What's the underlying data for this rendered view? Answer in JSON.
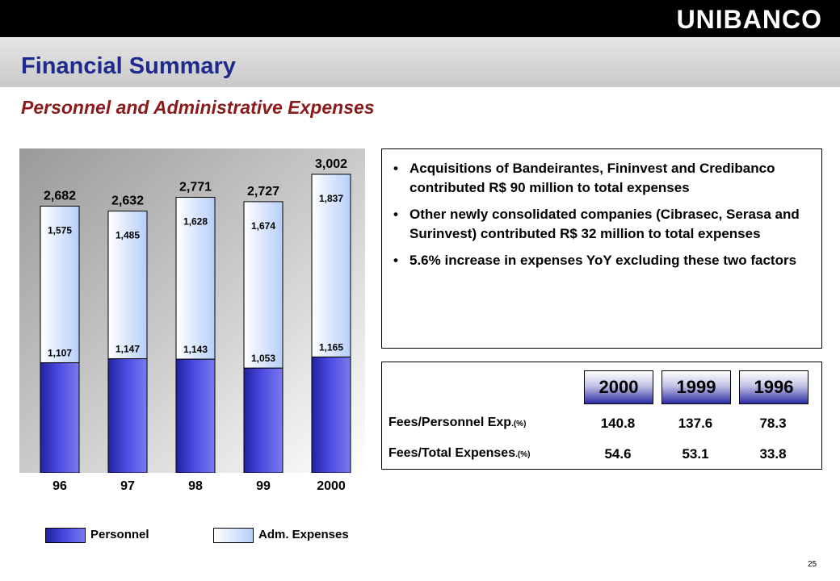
{
  "header": {
    "logo_text": "UNIBANCO"
  },
  "title": "Financial Summary",
  "subtitle": "Personnel and Administrative Expenses",
  "colors": {
    "personnel": "#3a3ac8",
    "adm_expenses": "#dce8ff",
    "title": "#1f2a8f",
    "subtitle": "#8b1a1a"
  },
  "chart_data": {
    "type": "bar",
    "stacked": true,
    "categories": [
      "96",
      "97",
      "98",
      "99",
      "2000"
    ],
    "series": [
      {
        "name": "Personnel",
        "values": [
          1107,
          1147,
          1143,
          1053,
          1165
        ],
        "labels": [
          "1,107",
          "1,147",
          "1,143",
          "1,053",
          "1,165"
        ]
      },
      {
        "name": "Adm. Expenses",
        "values": [
          1575,
          1485,
          1628,
          1674,
          1837
        ],
        "labels": [
          "1,575",
          "1,485",
          "1,628",
          "1,674",
          "1,837"
        ]
      }
    ],
    "totals": [
      2682,
      2632,
      2771,
      2727,
      3002
    ],
    "total_labels": [
      "2,682",
      "2,632",
      "2,771",
      "2,727",
      "3,002"
    ],
    "legend": [
      "Personnel",
      "Adm. Expenses"
    ]
  },
  "bullets": [
    "Acquisitions of Bandeirantes, Fininvest and Credibanco contributed R$ 90 million to total expenses",
    "Other newly consolidated companies (Cibrasec, Serasa and Surinvest) contributed   R$ 32 million to total expenses",
    "5.6% increase in expenses YoY excluding these two factors"
  ],
  "table": {
    "years": [
      "2000",
      "1999",
      "1996"
    ],
    "rows": [
      {
        "label": "Fees/Personnel Exp",
        "unit": ".(%)",
        "values": [
          "140.8",
          "137.6",
          "78.3"
        ]
      },
      {
        "label": "Fees/Total Expenses",
        "unit": ".(%)",
        "values": [
          "54.6",
          "53.1",
          "33.8"
        ]
      }
    ]
  },
  "page_number": "25"
}
